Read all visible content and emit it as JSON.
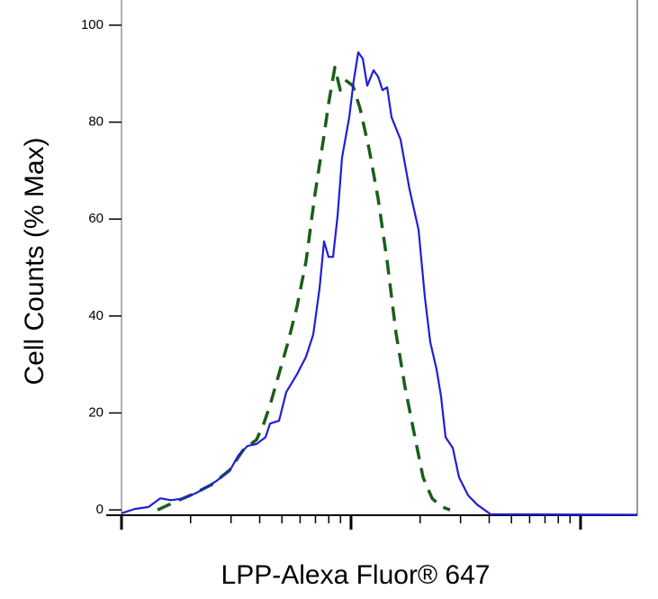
{
  "chart_data": {
    "type": "line",
    "x_label": "LPP-Alexa Fluor® 647",
    "y_label": "Cell Counts (% Max)",
    "xscale": "log",
    "xlim": [
      1,
      176.7
    ],
    "ylim": [
      -1.1,
      105.2
    ],
    "xticks": [
      1,
      2,
      3,
      4,
      5,
      6,
      7,
      8,
      9,
      10,
      20,
      30,
      40,
      50,
      60,
      70,
      80,
      90,
      100
    ],
    "yticks": [
      0,
      20,
      40,
      60,
      80,
      100
    ],
    "series": [
      {
        "color": "#1f1fd6",
        "dash": false,
        "x": [
          1.0,
          1.145,
          1.311,
          1.475,
          1.643,
          1.882,
          2.154,
          2.581,
          2.955,
          3.234,
          3.54,
          3.875,
          4.242,
          4.437,
          4.857,
          5.22,
          5.817,
          6.368,
          6.843,
          7.292,
          7.627,
          7.98,
          8.349,
          8.735,
          9.138,
          9.82,
          10.27,
          10.75,
          11.25,
          11.77,
          12.53,
          13.11,
          13.72,
          14.36,
          15.02,
          16.43,
          17.98,
          19.68,
          20.97,
          22.14,
          23.59,
          24.68,
          25.81,
          27.74,
          29.55,
          32.34,
          35.4,
          40.54,
          176.7
        ],
        "values": [
          -0.7,
          0.2,
          0.6,
          2.4,
          2.0,
          2.4,
          3.7,
          5.9,
          8.0,
          11.3,
          13.2,
          13.6,
          15.0,
          17.8,
          18.4,
          24.3,
          28.0,
          31.6,
          36.2,
          45.7,
          55.4,
          52.2,
          52.2,
          60.6,
          72.7,
          81.0,
          88.5,
          94.4,
          93.1,
          87.5,
          90.7,
          89.4,
          86.6,
          87.2,
          81.0,
          76.4,
          66.2,
          57.8,
          43.9,
          34.6,
          29.0,
          23.4,
          15.0,
          12.8,
          6.7,
          3.0,
          1.1,
          -0.9,
          -1.0
        ]
      },
      {
        "color": "#1a5e1a",
        "dash": true,
        "x": [
          1.435,
          1.719,
          2.059,
          2.466,
          2.955,
          3.383,
          3.875,
          4.165,
          4.437,
          4.857,
          5.315,
          5.817,
          6.368,
          6.968,
          7.627,
          7.98,
          8.503,
          8.974,
          9.559,
          10.18,
          10.94,
          11.98,
          13.11,
          14.36,
          15.71,
          17.19,
          18.81,
          20.59,
          22.54,
          24.68,
          27.01
        ],
        "values": [
          0,
          1.7,
          3.3,
          5.2,
          8.2,
          12.3,
          14.5,
          17.8,
          21.6,
          28.1,
          34.6,
          42.0,
          51.3,
          65.2,
          77.3,
          83.8,
          91.3,
          86.6,
          88.5,
          87.5,
          82.9,
          74.5,
          64.3,
          51.3,
          36.4,
          25.3,
          16.0,
          6.7,
          2.4,
          0.7,
          0
        ]
      }
    ]
  }
}
